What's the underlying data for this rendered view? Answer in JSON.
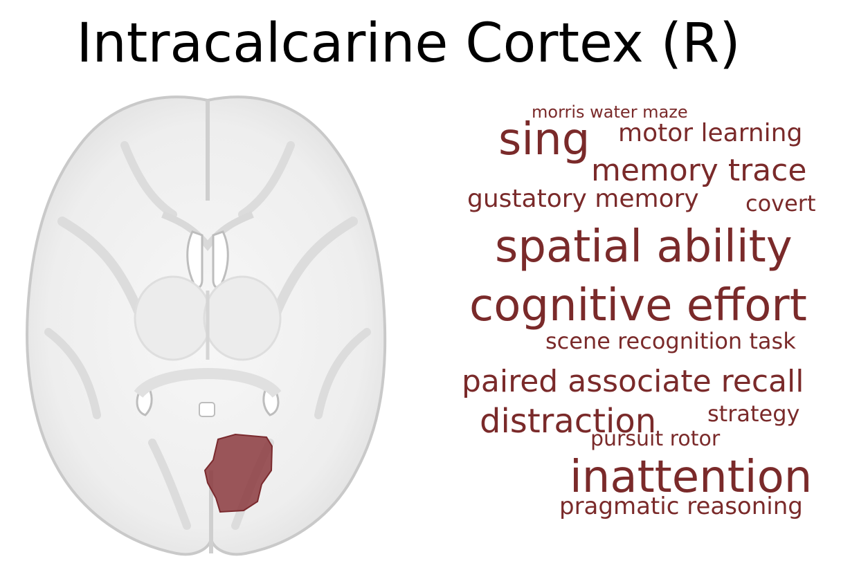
{
  "title": "Intracalcarine Cortex (R)",
  "colors": {
    "word": "#7a2a2a",
    "region": "#8b3a3e",
    "brain_fill": "#f2f2f2",
    "brain_edge": "#c8c8c8",
    "ventricle": "#ffffff"
  },
  "word_cloud": [
    {
      "text": "morris water maze",
      "weight": 1
    },
    {
      "text": "sing",
      "weight": 5
    },
    {
      "text": "motor learning",
      "weight": 2
    },
    {
      "text": "memory trace",
      "weight": 3
    },
    {
      "text": "gustatory memory",
      "weight": 2
    },
    {
      "text": "covert",
      "weight": 2
    },
    {
      "text": "spatial ability",
      "weight": 5
    },
    {
      "text": "cognitive effort",
      "weight": 5
    },
    {
      "text": "scene recognition task",
      "weight": 2
    },
    {
      "text": "paired associate recall",
      "weight": 4
    },
    {
      "text": "distraction",
      "weight": 4
    },
    {
      "text": "strategy",
      "weight": 2
    },
    {
      "text": "pursuit rotor",
      "weight": 2
    },
    {
      "text": "inattention",
      "weight": 5
    },
    {
      "text": "pragmatic reasoning",
      "weight": 2
    }
  ]
}
